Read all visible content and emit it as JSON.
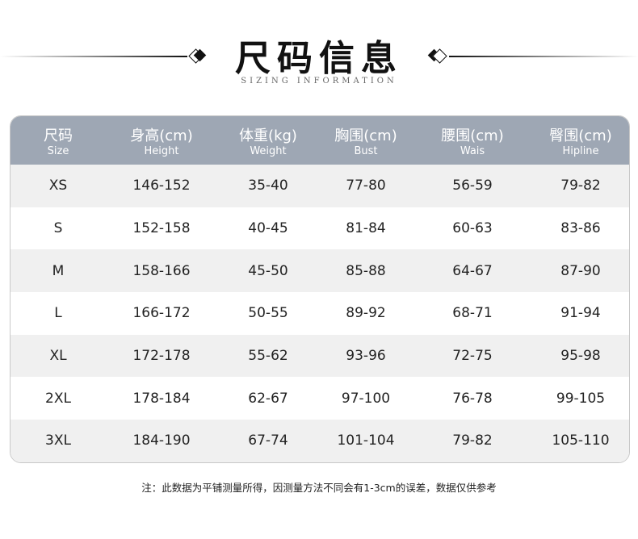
{
  "title": "尺码信息",
  "subtitle": "SIZING INFORMATION",
  "columns": [
    {
      "zh": "尺码",
      "en": "Size"
    },
    {
      "zh": "身高(cm)",
      "en": "Height"
    },
    {
      "zh": "体重(kg)",
      "en": "Weight"
    },
    {
      "zh": "胸围(cm)",
      "en": "Bust"
    },
    {
      "zh": "腰围(cm)",
      "en": "Wais"
    },
    {
      "zh": "臀围(cm)",
      "en": "Hipline"
    }
  ],
  "rows": [
    [
      "XS",
      "146-152",
      "35-40",
      "77-80",
      "56-59",
      "79-82"
    ],
    [
      "S",
      "152-158",
      "40-45",
      "81-84",
      "60-63",
      "83-86"
    ],
    [
      "M",
      "158-166",
      "45-50",
      "85-88",
      "64-67",
      "87-90"
    ],
    [
      "L",
      "166-172",
      "50-55",
      "89-92",
      "68-71",
      "91-94"
    ],
    [
      "XL",
      "172-178",
      "55-62",
      "93-96",
      "72-75",
      "95-98"
    ],
    [
      "2XL",
      "178-184",
      "62-67",
      "97-100",
      "76-78",
      "99-105"
    ],
    [
      "3XL",
      "184-190",
      "67-74",
      "101-104",
      "79-82",
      "105-110"
    ]
  ],
  "note": "注：此数据为平铺测量所得，因测量方法不同会有1-3cm的误差，数据仅供参考",
  "colors": {
    "header": "#9ea7b4",
    "stripe": "#f0f0f0"
  }
}
